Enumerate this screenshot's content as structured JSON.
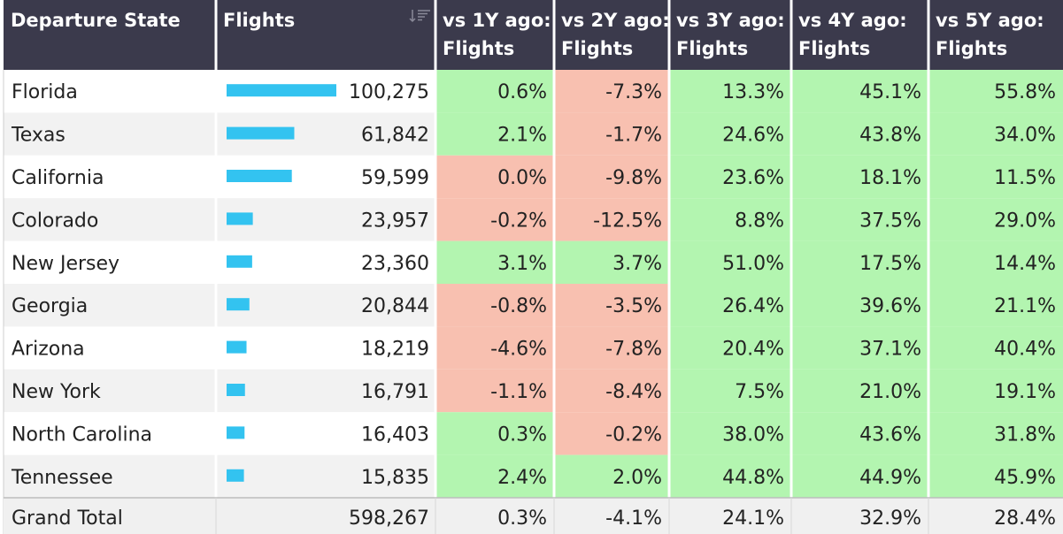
{
  "chart_data": {
    "type": "table",
    "columns": [
      "Departure State",
      "Flights",
      "vs 1Y ago: Flights",
      "vs 2Y ago: Flights",
      "vs 3Y ago: Flights",
      "vs 4Y ago: Flights",
      "vs 5Y ago: Flights"
    ],
    "header_lines": [
      [
        "Departure State"
      ],
      [
        "Flights"
      ],
      [
        "vs 1Y ago:",
        "Flights"
      ],
      [
        "vs 2Y ago:",
        "Flights"
      ],
      [
        "vs 3Y ago:",
        "Flights"
      ],
      [
        "vs 4Y ago:",
        "Flights"
      ],
      [
        "vs 5Y ago:",
        "Flights"
      ]
    ],
    "sort_icon": "sort-descending-icon",
    "bar_max": 100275,
    "rows": [
      {
        "state": "Florida",
        "flights": 100275,
        "flights_label": "100,275",
        "vs": [
          "0.6%",
          "-7.3%",
          "13.3%",
          "45.1%",
          "55.8%"
        ],
        "vs_values": [
          0.6,
          -7.3,
          13.3,
          45.1,
          55.8
        ]
      },
      {
        "state": "Texas",
        "flights": 61842,
        "flights_label": "61,842",
        "vs": [
          "2.1%",
          "-1.7%",
          "24.6%",
          "43.8%",
          "34.0%"
        ],
        "vs_values": [
          2.1,
          -1.7,
          24.6,
          43.8,
          34.0
        ]
      },
      {
        "state": "California",
        "flights": 59599,
        "flights_label": "59,599",
        "vs": [
          "0.0%",
          "-9.8%",
          "23.6%",
          "18.1%",
          "11.5%"
        ],
        "vs_values": [
          -0.01,
          -9.8,
          23.6,
          18.1,
          11.5
        ]
      },
      {
        "state": "Colorado",
        "flights": 23957,
        "flights_label": "23,957",
        "vs": [
          "-0.2%",
          "-12.5%",
          "8.8%",
          "37.5%",
          "29.0%"
        ],
        "vs_values": [
          -0.2,
          -12.5,
          8.8,
          37.5,
          29.0
        ]
      },
      {
        "state": "New Jersey",
        "flights": 23360,
        "flights_label": "23,360",
        "vs": [
          "3.1%",
          "3.7%",
          "51.0%",
          "17.5%",
          "14.4%"
        ],
        "vs_values": [
          3.1,
          3.7,
          51.0,
          17.5,
          14.4
        ]
      },
      {
        "state": "Georgia",
        "flights": 20844,
        "flights_label": "20,844",
        "vs": [
          "-0.8%",
          "-3.5%",
          "26.4%",
          "39.6%",
          "21.1%"
        ],
        "vs_values": [
          -0.8,
          -3.5,
          26.4,
          39.6,
          21.1
        ]
      },
      {
        "state": "Arizona",
        "flights": 18219,
        "flights_label": "18,219",
        "vs": [
          "-4.6%",
          "-7.8%",
          "20.4%",
          "37.1%",
          "40.4%"
        ],
        "vs_values": [
          -4.6,
          -7.8,
          20.4,
          37.1,
          40.4
        ]
      },
      {
        "state": "New York",
        "flights": 16791,
        "flights_label": "16,791",
        "vs": [
          "-1.1%",
          "-8.4%",
          "7.5%",
          "21.0%",
          "19.1%"
        ],
        "vs_values": [
          -1.1,
          -8.4,
          7.5,
          21.0,
          19.1
        ]
      },
      {
        "state": "North Carolina",
        "flights": 16403,
        "flights_label": "16,403",
        "vs": [
          "0.3%",
          "-0.2%",
          "38.0%",
          "43.6%",
          "31.8%"
        ],
        "vs_values": [
          0.3,
          -0.2,
          38.0,
          43.6,
          31.8
        ]
      },
      {
        "state": "Tennessee",
        "flights": 15835,
        "flights_label": "15,835",
        "vs": [
          "2.4%",
          "2.0%",
          "44.8%",
          "44.9%",
          "45.9%"
        ],
        "vs_values": [
          2.4,
          2.0,
          44.8,
          44.9,
          45.9
        ]
      }
    ],
    "total": {
      "label": "Grand Total",
      "flights_label": "598,267",
      "vs": [
        "0.3%",
        "-4.1%",
        "24.1%",
        "32.9%",
        "28.4%"
      ]
    },
    "colors": {
      "header_bg": "#3b3a4c",
      "header_text": "#ffffff",
      "positive_bg": "#b3f5b0",
      "negative_bg": "#f8c0b0",
      "row_even": "#ffffff",
      "row_odd": "#f2f2f2",
      "total_bg": "#f0f0f0",
      "bar": "#33c3f0",
      "text": "#222222"
    }
  }
}
